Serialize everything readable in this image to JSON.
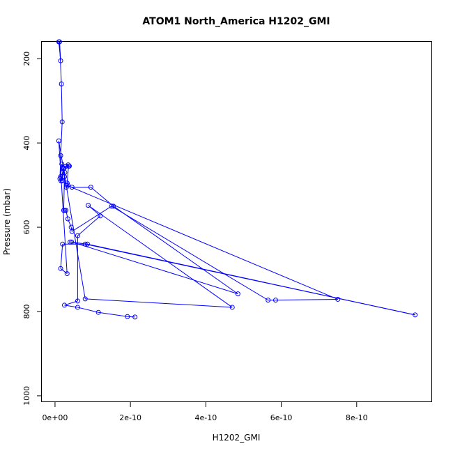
{
  "chart_data": {
    "type": "line",
    "title": "ATOM1 North_America H1202_GMI",
    "xlabel": "H1202_GMI",
    "ylabel": "Pressure (mbar)",
    "xlim": [
      -3.5e-11,
      1e-09
    ],
    "ylim": [
      1015,
      160
    ],
    "x_ticks": [
      0,
      2e-10,
      4e-10,
      6e-10,
      8e-10
    ],
    "x_tick_labels": [
      "0e+00",
      "2e-10",
      "4e-10",
      "6e-10",
      "8e-10"
    ],
    "y_ticks": [
      200,
      400,
      600,
      800,
      1000
    ],
    "y_tick_labels": [
      "200",
      "400",
      "600",
      "800",
      "1000"
    ],
    "grid": false,
    "series_color": "#0000ff",
    "series": [
      {
        "x": [
          1e-11,
          1.5e-11,
          1.2e-11,
          1.7e-11,
          1.9e-11,
          1.5e-11,
          1.3e-11,
          1.6e-11,
          2e-11,
          2.2e-11,
          1.8e-11,
          1.5e-11,
          1.9e-11,
          2.4e-11,
          2.9e-11,
          3.5e-11,
          3.8e-11,
          3.6e-11,
          3.2e-11,
          3.4e-11,
          3e-11,
          2.5e-11,
          2.6e-11,
          2.5e-11,
          2.3e-11,
          2.6e-11,
          2.9e-11,
          3.4e-11,
          4.3e-11,
          4.5e-11,
          1.5e-10,
          5.65e-10,
          5.85e-10,
          7.5e-10,
          3e-11,
          4.5e-11,
          9.5e-11,
          1.55e-10,
          4.85e-10,
          4.4e-11,
          4e-11,
          8.6e-11,
          9.55e-10,
          8e-11,
          2e-11,
          1.5e-11,
          3.2e-11,
          1e-11,
          8e-11,
          4.7e-10,
          8.8e-11,
          1.2e-10,
          6e-11,
          6e-11,
          2.5e-11,
          6e-11,
          1.15e-10,
          1.92e-10,
          2.12e-10
        ],
        "y": [
          160,
          205,
          160,
          260,
          350,
          430,
          485,
          490,
          470,
          460,
          450,
          480,
          490,
          460,
          455,
          452,
          455,
          455,
          495,
          500,
          505,
          480,
          470,
          480,
          560,
          560,
          560,
          580,
          600,
          610,
          550,
          773,
          773,
          771,
          500,
          505,
          505,
          550,
          758,
          635,
          635,
          640,
          808,
          640,
          640,
          698,
          710,
          395,
          770,
          790,
          548,
          573,
          620,
          775,
          785,
          790,
          802,
          812,
          813
        ]
      }
    ]
  }
}
